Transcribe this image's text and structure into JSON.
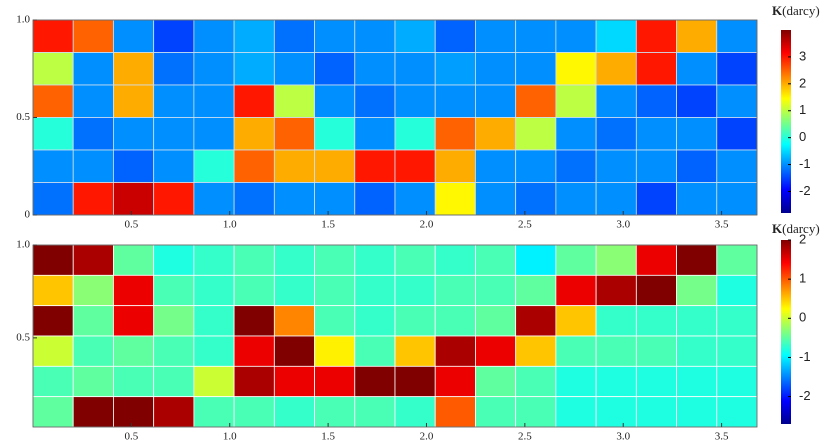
{
  "chart_data": [
    {
      "type": "heatmap",
      "cell_border": "#cfe0f0",
      "xlim": [
        0,
        3.68
      ],
      "ylim": [
        0,
        1
      ],
      "xticks": [
        0.5,
        {
          "value": 1,
          "label": "1.0"
        },
        1.5,
        {
          "value": 2,
          "label": "2.0"
        },
        2.5,
        {
          "value": 3,
          "label": "3.0"
        },
        3.5
      ],
      "yticks": [
        0,
        0.5,
        {
          "value": 1,
          "label": "1.0"
        }
      ],
      "colorbar": {
        "label_symbol": "K",
        "label_unit": "(darcy)",
        "clim": [
          -2.8,
          4
        ],
        "ticks": [
          -2,
          -1,
          0,
          1,
          2,
          3
        ]
      },
      "values": [
        [
          3,
          2.5,
          -1,
          -1.5,
          -1,
          -0.8,
          -1.2,
          -1,
          -1,
          -0.8,
          -1.3,
          -1,
          -1,
          -1,
          -0.5,
          3,
          2,
          -1
        ],
        [
          1,
          -1,
          2,
          -1.2,
          -1,
          -0.8,
          -1,
          -1.3,
          -1,
          -1,
          -0.9,
          -1,
          -1,
          1.5,
          2,
          3,
          -1,
          -1.5
        ],
        [
          2.5,
          -1,
          2,
          -1,
          -1,
          3,
          1,
          -1,
          -1.2,
          -1,
          -1,
          -1,
          2.5,
          1,
          -1,
          -1.3,
          -1.5,
          -1
        ],
        [
          0,
          -1.2,
          -1,
          -1,
          -1,
          2,
          2.5,
          0,
          -1,
          0,
          2.5,
          2,
          1,
          -1,
          -1.2,
          -1,
          -1,
          -1.5
        ],
        [
          -1,
          -1,
          -1.3,
          -1,
          0,
          2.5,
          2,
          2,
          3,
          3,
          2,
          -1,
          -1,
          -1.2,
          -1,
          -1,
          -1.3,
          -1
        ],
        [
          -1.2,
          3,
          3.5,
          3,
          -1,
          -1.2,
          -1,
          -1,
          -1.3,
          -1,
          1.5,
          -1,
          -1.2,
          -1,
          -1,
          -1.5,
          -1,
          -1
        ]
      ]
    },
    {
      "type": "heatmap",
      "cell_border": "#ffffff",
      "xlim": [
        0,
        3.68
      ],
      "ylim": [
        0.02,
        1
      ],
      "xticks": [
        0.5,
        {
          "value": 1,
          "label": "1.0"
        },
        1.5,
        {
          "value": 2,
          "label": "2.0"
        },
        2.5,
        {
          "value": 3,
          "label": "3.0"
        },
        3.5
      ],
      "yticks": [
        0.5,
        {
          "value": 1,
          "label": "1.0"
        }
      ],
      "colorbar": {
        "label_symbol": "K",
        "label_unit": "(darcy)",
        "clim": [
          -2.7,
          2
        ],
        "ticks": [
          -2,
          -1,
          0,
          1,
          2
        ]
      },
      "values": [
        [
          2,
          1.8,
          -0.5,
          -0.8,
          -0.7,
          -0.6,
          -0.7,
          -0.6,
          -0.7,
          -0.6,
          -0.7,
          -0.6,
          -1,
          -0.5,
          -0.3,
          1.5,
          2,
          -0.5
        ],
        [
          0.5,
          -0.3,
          1.5,
          -0.6,
          -0.7,
          -0.6,
          -0.7,
          -0.6,
          -0.7,
          -0.7,
          -0.6,
          -0.6,
          -0.5,
          1.5,
          1.8,
          2,
          -0.4,
          -0.8
        ],
        [
          2,
          -0.5,
          1.5,
          -0.4,
          -0.7,
          2,
          0.8,
          -0.6,
          -0.7,
          -0.6,
          -0.6,
          -0.5,
          1.8,
          0.5,
          -0.7,
          -0.7,
          -0.7,
          -0.7
        ],
        [
          0,
          -0.6,
          -0.5,
          -0.6,
          -0.7,
          1.5,
          2,
          0.3,
          -0.6,
          0.5,
          1.8,
          1.5,
          0.5,
          -0.6,
          -0.6,
          -0.6,
          -0.7,
          -0.7
        ],
        [
          -0.6,
          -0.5,
          -0.6,
          -0.6,
          0,
          1.8,
          1.5,
          1.5,
          2,
          2,
          1.5,
          -0.5,
          -0.6,
          -0.8,
          -0.8,
          -0.8,
          -0.8,
          -0.8
        ],
        [
          -0.5,
          2,
          2,
          1.8,
          -0.6,
          -0.6,
          -0.7,
          -0.6,
          -0.6,
          -0.7,
          1,
          -0.6,
          -0.6,
          -0.8,
          -0.8,
          -0.8,
          -0.8,
          -0.8
        ]
      ]
    }
  ]
}
